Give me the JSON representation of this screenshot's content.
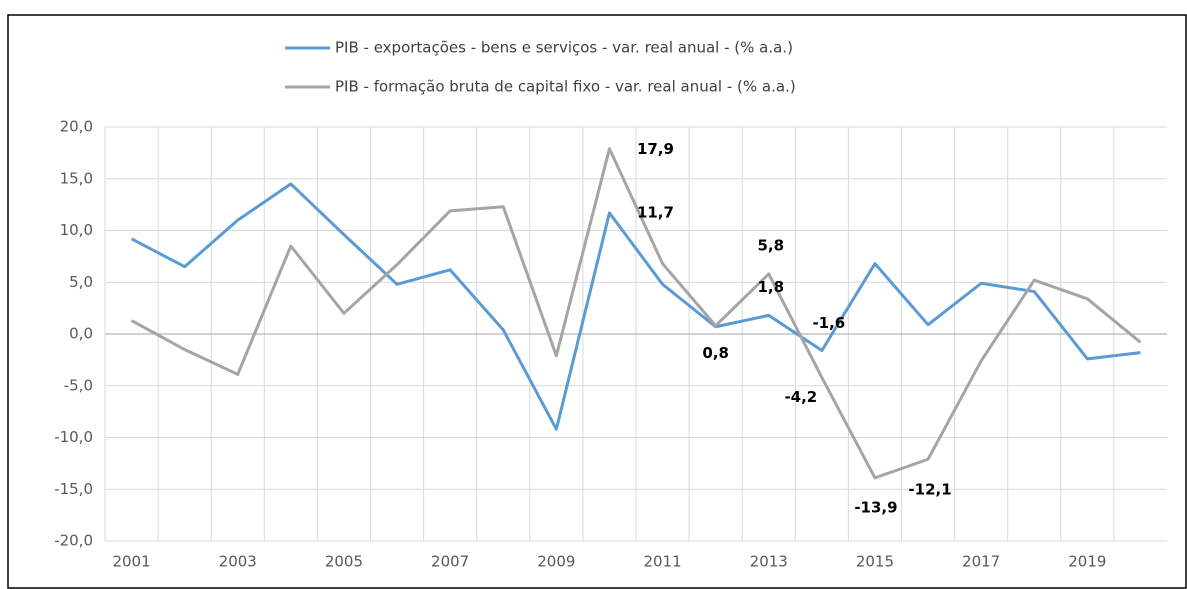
{
  "chart_data": {
    "type": "line",
    "categories": [
      "2001",
      null,
      "2003",
      null,
      "2005",
      null,
      "2007",
      null,
      "2009",
      null,
      "2011",
      null,
      "2013",
      null,
      "2015",
      null,
      "2017",
      null,
      "2019",
      null
    ],
    "series": [
      {
        "name": "PIB - exportações - bens e serviços - var. real anual - (% a.a.)",
        "color": "#5b9bd5",
        "values": [
          9.2,
          6.5,
          11.0,
          14.5,
          9.6,
          4.8,
          6.2,
          0.4,
          -9.2,
          11.7,
          4.8,
          0.7,
          1.8,
          -1.6,
          6.8,
          0.9,
          4.9,
          4.1,
          -2.4,
          -1.8
        ],
        "value_labels": [
          null,
          null,
          null,
          null,
          null,
          null,
          null,
          null,
          null,
          "11,7",
          null,
          null,
          "1,8",
          "-1,6",
          null,
          null,
          null,
          null,
          null,
          null
        ]
      },
      {
        "name": "PIB - formação bruta de capital fixo - var. real anual - (% a.a.)",
        "color": "#a5a5a5",
        "values": [
          1.3,
          -1.5,
          -3.9,
          8.5,
          2.0,
          6.7,
          11.9,
          12.3,
          -2.1,
          17.9,
          6.8,
          0.8,
          5.8,
          -4.2,
          -13.9,
          -12.1,
          -2.6,
          5.2,
          3.4,
          -0.8
        ],
        "value_labels": [
          null,
          null,
          null,
          null,
          null,
          null,
          null,
          null,
          null,
          "17,9",
          null,
          "0,8",
          "5,8",
          "-4,2",
          "-13,9",
          "-12,1",
          null,
          null,
          null,
          null
        ]
      }
    ],
    "ylim": [
      -20,
      20
    ],
    "yticks": [
      {
        "value": -20,
        "label": "-20,0"
      },
      {
        "value": -15,
        "label": "-15,0"
      },
      {
        "value": -10,
        "label": "-10,0"
      },
      {
        "value": -5,
        "label": "-5,0"
      },
      {
        "value": 0,
        "label": "0,0"
      },
      {
        "value": 5,
        "label": "5,0"
      },
      {
        "value": 10,
        "label": "10,0"
      },
      {
        "value": 15,
        "label": "15,0"
      },
      {
        "value": 20,
        "label": "20,0"
      }
    ],
    "grid": true,
    "legend": "top"
  }
}
